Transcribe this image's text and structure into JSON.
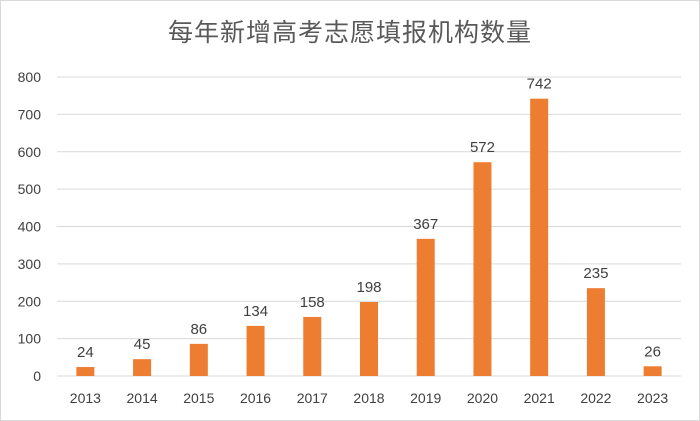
{
  "chart_data": {
    "type": "bar",
    "title": "每年新增高考志愿填报机构数量",
    "xlabel": "",
    "ylabel": "",
    "categories": [
      "2013",
      "2014",
      "2015",
      "2016",
      "2017",
      "2018",
      "2019",
      "2020",
      "2021",
      "2022",
      "2023"
    ],
    "values": [
      24,
      45,
      86,
      134,
      158,
      198,
      367,
      572,
      742,
      235,
      26
    ],
    "ylim": [
      0,
      800
    ],
    "yticks": [
      0,
      100,
      200,
      300,
      400,
      500,
      600,
      700,
      800
    ],
    "grid": true,
    "legend": "none",
    "data_labels": true,
    "bar_color": "#ED7D31",
    "grid_color": "#D9D9D9"
  }
}
